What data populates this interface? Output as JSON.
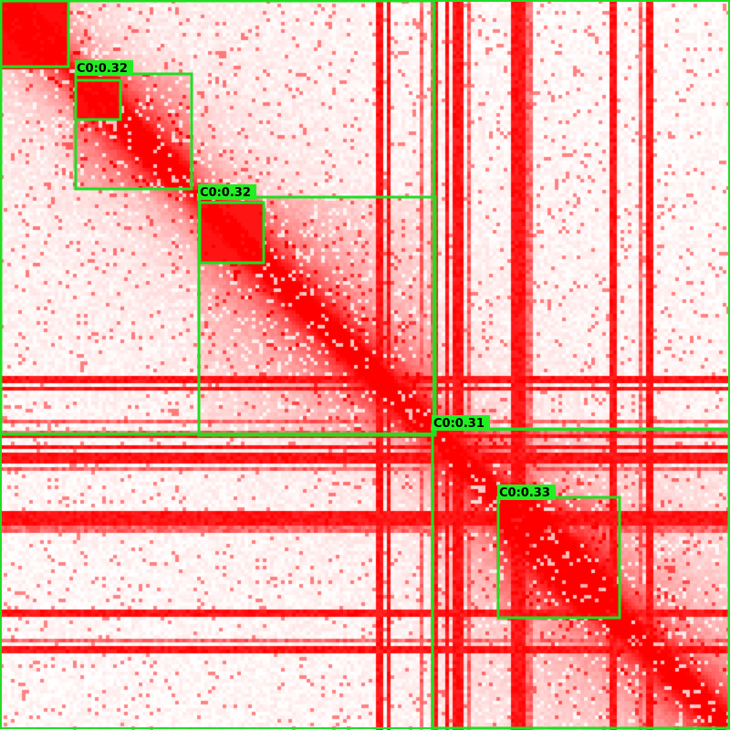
{
  "image": {
    "kind": "contact-map-with-detected-domains",
    "colors": {
      "background": "#ffffff",
      "signal": "#ff0000",
      "box_stroke": "#22dd22",
      "label_bg": "#22ee22",
      "label_text": "#000000"
    },
    "labels": [
      "C0:0.32",
      "C0:0.32",
      "C0:0.31",
      "C0:0.33"
    ]
  }
}
